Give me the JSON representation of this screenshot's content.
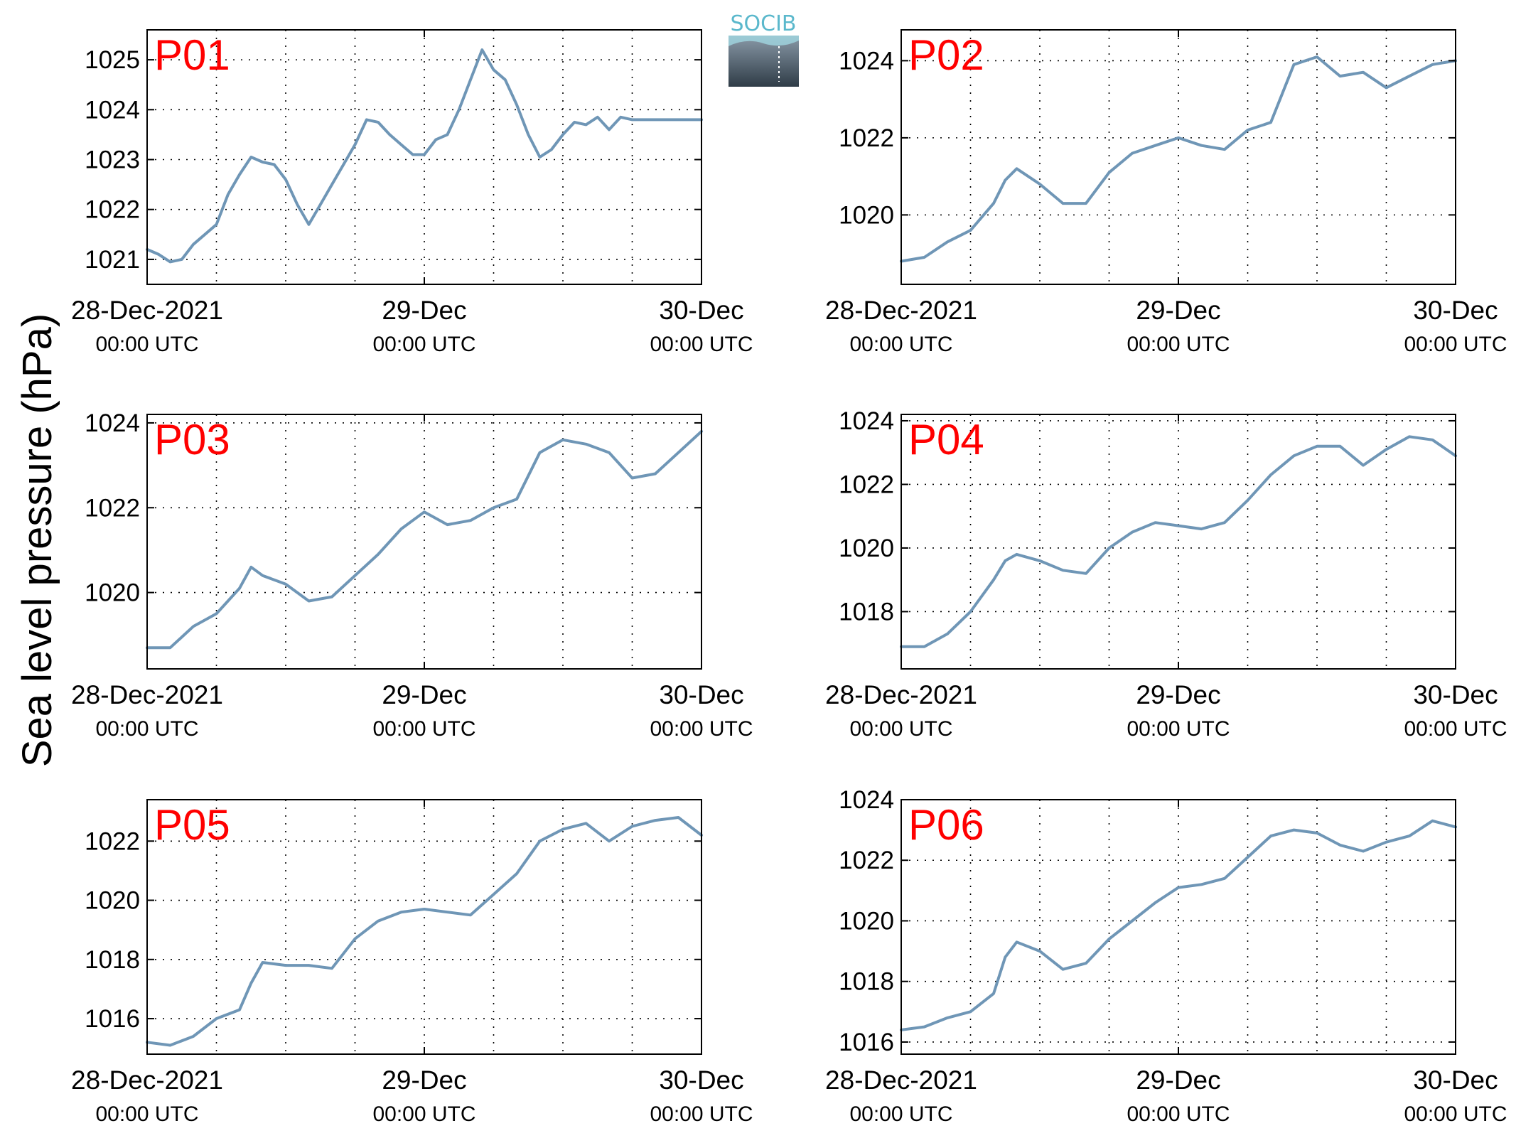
{
  "figure": {
    "ylabel": "Sea level pressure (hPa)",
    "line_color": "#6f96b6",
    "title_color": "#ff0000",
    "logo": {
      "text": "SOCIB",
      "text_color": "#5bb8cc"
    }
  },
  "chart_data": [
    {
      "type": "line",
      "title": "P01",
      "xlabel": "",
      "ylabel": "Sea level pressure (hPa)",
      "xlim": [
        "2021-12-28T00:00",
        "2021-12-30T00:00"
      ],
      "xticks": [
        {
          "line1": "28-Dec-2021",
          "line2": "00:00 UTC"
        },
        {
          "line1": "29-Dec",
          "line2": "00:00 UTC"
        },
        {
          "line1": "30-Dec",
          "line2": "00:00 UTC"
        }
      ],
      "ylim": [
        1020.5,
        1025.6
      ],
      "yticks": [
        1021,
        1022,
        1023,
        1024,
        1025
      ],
      "grid": true,
      "series": [
        {
          "x": [
            "2021-12-28T00:00",
            "2021-12-28T01:00",
            "2021-12-28T02:00",
            "2021-12-28T03:00",
            "2021-12-28T04:00",
            "2021-12-28T05:00",
            "2021-12-28T06:00",
            "2021-12-28T07:00",
            "2021-12-28T08:00",
            "2021-12-28T09:00",
            "2021-12-28T10:00",
            "2021-12-28T11:00",
            "2021-12-28T12:00",
            "2021-12-28T13:00",
            "2021-12-28T14:00",
            "2021-12-28T15:00",
            "2021-12-28T16:00",
            "2021-12-28T17:00",
            "2021-12-28T18:00",
            "2021-12-28T19:00",
            "2021-12-28T20:00",
            "2021-12-28T21:00",
            "2021-12-28T22:00",
            "2021-12-28T23:00",
            "2021-12-29T00:00",
            "2021-12-29T01:00",
            "2021-12-29T02:00",
            "2021-12-29T03:00",
            "2021-12-29T04:00",
            "2021-12-29T05:00",
            "2021-12-29T06:00",
            "2021-12-29T07:00",
            "2021-12-29T08:00",
            "2021-12-29T09:00",
            "2021-12-29T10:00",
            "2021-12-29T11:00",
            "2021-12-29T12:00",
            "2021-12-29T13:00",
            "2021-12-29T14:00",
            "2021-12-29T15:00",
            "2021-12-29T16:00",
            "2021-12-29T17:00",
            "2021-12-29T18:00",
            "2021-12-29T19:00",
            "2021-12-29T20:00",
            "2021-12-29T21:00",
            "2021-12-29T22:00",
            "2021-12-29T23:00",
            "2021-12-30T00:00"
          ],
          "values": [
            1021.2,
            1021.1,
            1020.95,
            1021.0,
            1021.3,
            1021.5,
            1021.7,
            1022.3,
            1022.7,
            1023.05,
            1022.95,
            1022.9,
            1022.6,
            1022.1,
            1021.7,
            1022.1,
            1022.5,
            1022.9,
            1023.3,
            1023.8,
            1023.75,
            1023.5,
            1023.3,
            1023.1,
            1023.1,
            1023.4,
            1023.5,
            1024.0,
            1024.6,
            1025.2,
            1024.8,
            1024.6,
            1024.1,
            1023.5,
            1023.05,
            1023.2,
            1023.5,
            1023.75,
            1023.7,
            1023.85,
            1023.6,
            1023.85,
            1023.8,
            1023.8,
            1023.8,
            1023.8,
            1023.8,
            1023.8,
            1023.8
          ]
        }
      ]
    },
    {
      "type": "line",
      "title": "P02",
      "xlabel": "",
      "ylabel": "Sea level pressure (hPa)",
      "xlim": [
        "2021-12-28T00:00",
        "2021-12-30T00:00"
      ],
      "xticks": [
        {
          "line1": "28-Dec-2021",
          "line2": "00:00 UTC"
        },
        {
          "line1": "29-Dec",
          "line2": "00:00 UTC"
        },
        {
          "line1": "30-Dec",
          "line2": "00:00 UTC"
        }
      ],
      "ylim": [
        1018.2,
        1024.8
      ],
      "yticks": [
        1020,
        1022,
        1024
      ],
      "grid": true,
      "series": [
        {
          "x": [
            "2021-12-28T00:00",
            "2021-12-28T02:00",
            "2021-12-28T04:00",
            "2021-12-28T06:00",
            "2021-12-28T08:00",
            "2021-12-28T09:00",
            "2021-12-28T10:00",
            "2021-12-28T12:00",
            "2021-12-28T14:00",
            "2021-12-28T16:00",
            "2021-12-28T18:00",
            "2021-12-28T20:00",
            "2021-12-28T22:00",
            "2021-12-29T00:00",
            "2021-12-29T02:00",
            "2021-12-29T04:00",
            "2021-12-29T06:00",
            "2021-12-29T08:00",
            "2021-12-29T10:00",
            "2021-12-29T12:00",
            "2021-12-29T14:00",
            "2021-12-29T16:00",
            "2021-12-29T18:00",
            "2021-12-29T20:00",
            "2021-12-29T22:00",
            "2021-12-30T00:00"
          ],
          "values": [
            1018.8,
            1018.9,
            1019.3,
            1019.6,
            1020.3,
            1020.9,
            1021.2,
            1020.8,
            1020.3,
            1020.3,
            1021.1,
            1021.6,
            1021.8,
            1022.0,
            1021.8,
            1021.7,
            1022.2,
            1022.4,
            1023.9,
            1024.1,
            1023.6,
            1023.7,
            1023.3,
            1023.6,
            1023.9,
            1024.0
          ]
        }
      ]
    },
    {
      "type": "line",
      "title": "P03",
      "xlabel": "",
      "ylabel": "Sea level pressure (hPa)",
      "xlim": [
        "2021-12-28T00:00",
        "2021-12-30T00:00"
      ],
      "xticks": [
        {
          "line1": "28-Dec-2021",
          "line2": "00:00 UTC"
        },
        {
          "line1": "29-Dec",
          "line2": "00:00 UTC"
        },
        {
          "line1": "30-Dec",
          "line2": "00:00 UTC"
        }
      ],
      "ylim": [
        1018.2,
        1024.2
      ],
      "yticks": [
        1020,
        1022,
        1024
      ],
      "grid": true,
      "series": [
        {
          "x": [
            "2021-12-28T00:00",
            "2021-12-28T02:00",
            "2021-12-28T04:00",
            "2021-12-28T06:00",
            "2021-12-28T08:00",
            "2021-12-28T09:00",
            "2021-12-28T10:00",
            "2021-12-28T12:00",
            "2021-12-28T14:00",
            "2021-12-28T16:00",
            "2021-12-28T18:00",
            "2021-12-28T20:00",
            "2021-12-28T22:00",
            "2021-12-29T00:00",
            "2021-12-29T02:00",
            "2021-12-29T04:00",
            "2021-12-29T06:00",
            "2021-12-29T08:00",
            "2021-12-29T10:00",
            "2021-12-29T12:00",
            "2021-12-29T14:00",
            "2021-12-29T16:00",
            "2021-12-29T18:00",
            "2021-12-29T20:00",
            "2021-12-29T22:00",
            "2021-12-30T00:00"
          ],
          "values": [
            1018.7,
            1018.7,
            1019.2,
            1019.5,
            1020.1,
            1020.6,
            1020.4,
            1020.2,
            1019.8,
            1019.9,
            1020.4,
            1020.9,
            1021.5,
            1021.9,
            1021.6,
            1021.7,
            1022.0,
            1022.2,
            1023.3,
            1023.6,
            1023.5,
            1023.3,
            1022.7,
            1022.8,
            1023.3,
            1023.8
          ]
        }
      ]
    },
    {
      "type": "line",
      "title": "P04",
      "xlabel": "",
      "ylabel": "Sea level pressure (hPa)",
      "xlim": [
        "2021-12-28T00:00",
        "2021-12-30T00:00"
      ],
      "xticks": [
        {
          "line1": "28-Dec-2021",
          "line2": "00:00 UTC"
        },
        {
          "line1": "29-Dec",
          "line2": "00:00 UTC"
        },
        {
          "line1": "30-Dec",
          "line2": "00:00 UTC"
        }
      ],
      "ylim": [
        1016.2,
        1024.2
      ],
      "yticks": [
        1018,
        1020,
        1022,
        1024
      ],
      "grid": true,
      "series": [
        {
          "x": [
            "2021-12-28T00:00",
            "2021-12-28T02:00",
            "2021-12-28T04:00",
            "2021-12-28T06:00",
            "2021-12-28T08:00",
            "2021-12-28T09:00",
            "2021-12-28T10:00",
            "2021-12-28T12:00",
            "2021-12-28T14:00",
            "2021-12-28T16:00",
            "2021-12-28T18:00",
            "2021-12-28T20:00",
            "2021-12-28T22:00",
            "2021-12-29T00:00",
            "2021-12-29T02:00",
            "2021-12-29T04:00",
            "2021-12-29T06:00",
            "2021-12-29T08:00",
            "2021-12-29T10:00",
            "2021-12-29T12:00",
            "2021-12-29T14:00",
            "2021-12-29T16:00",
            "2021-12-29T18:00",
            "2021-12-29T20:00",
            "2021-12-29T22:00",
            "2021-12-30T00:00"
          ],
          "values": [
            1016.9,
            1016.9,
            1017.3,
            1018.0,
            1019.0,
            1019.6,
            1019.8,
            1019.6,
            1019.3,
            1019.2,
            1020.0,
            1020.5,
            1020.8,
            1020.7,
            1020.6,
            1020.8,
            1021.5,
            1022.3,
            1022.9,
            1023.2,
            1023.2,
            1022.6,
            1023.1,
            1023.5,
            1023.4,
            1022.9
          ]
        }
      ]
    },
    {
      "type": "line",
      "title": "P05",
      "xlabel": "",
      "ylabel": "Sea level pressure (hPa)",
      "xlim": [
        "2021-12-28T00:00",
        "2021-12-30T00:00"
      ],
      "xticks": [
        {
          "line1": "28-Dec-2021",
          "line2": "00:00 UTC"
        },
        {
          "line1": "29-Dec",
          "line2": "00:00 UTC"
        },
        {
          "line1": "30-Dec",
          "line2": "00:00 UTC"
        }
      ],
      "ylim": [
        1014.8,
        1023.4
      ],
      "yticks": [
        1016,
        1018,
        1020,
        1022
      ],
      "grid": true,
      "series": [
        {
          "x": [
            "2021-12-28T00:00",
            "2021-12-28T02:00",
            "2021-12-28T04:00",
            "2021-12-28T06:00",
            "2021-12-28T08:00",
            "2021-12-28T09:00",
            "2021-12-28T10:00",
            "2021-12-28T12:00",
            "2021-12-28T14:00",
            "2021-12-28T16:00",
            "2021-12-28T18:00",
            "2021-12-28T20:00",
            "2021-12-28T22:00",
            "2021-12-29T00:00",
            "2021-12-29T02:00",
            "2021-12-29T04:00",
            "2021-12-29T06:00",
            "2021-12-29T08:00",
            "2021-12-29T10:00",
            "2021-12-29T12:00",
            "2021-12-29T14:00",
            "2021-12-29T16:00",
            "2021-12-29T18:00",
            "2021-12-29T20:00",
            "2021-12-29T22:00",
            "2021-12-30T00:00"
          ],
          "values": [
            1015.2,
            1015.1,
            1015.4,
            1016.0,
            1016.3,
            1017.2,
            1017.9,
            1017.8,
            1017.8,
            1017.7,
            1018.7,
            1019.3,
            1019.6,
            1019.7,
            1019.6,
            1019.5,
            1020.2,
            1020.9,
            1022.0,
            1022.4,
            1022.6,
            1022.0,
            1022.5,
            1022.7,
            1022.8,
            1022.2
          ]
        }
      ]
    },
    {
      "type": "line",
      "title": "P06",
      "xlabel": "",
      "ylabel": "Sea level pressure (hPa)",
      "xlim": [
        "2021-12-28T00:00",
        "2021-12-30T00:00"
      ],
      "xticks": [
        {
          "line1": "28-Dec-2021",
          "line2": "00:00 UTC"
        },
        {
          "line1": "29-Dec",
          "line2": "00:00 UTC"
        },
        {
          "line1": "30-Dec",
          "line2": "00:00 UTC"
        }
      ],
      "ylim": [
        1015.6,
        1024.0
      ],
      "yticks": [
        1016,
        1018,
        1020,
        1022,
        1024
      ],
      "grid": true,
      "series": [
        {
          "x": [
            "2021-12-28T00:00",
            "2021-12-28T02:00",
            "2021-12-28T04:00",
            "2021-12-28T06:00",
            "2021-12-28T08:00",
            "2021-12-28T09:00",
            "2021-12-28T10:00",
            "2021-12-28T12:00",
            "2021-12-28T14:00",
            "2021-12-28T16:00",
            "2021-12-28T18:00",
            "2021-12-28T20:00",
            "2021-12-28T22:00",
            "2021-12-29T00:00",
            "2021-12-29T02:00",
            "2021-12-29T04:00",
            "2021-12-29T06:00",
            "2021-12-29T08:00",
            "2021-12-29T10:00",
            "2021-12-29T12:00",
            "2021-12-29T14:00",
            "2021-12-29T16:00",
            "2021-12-29T18:00",
            "2021-12-29T20:00",
            "2021-12-29T22:00",
            "2021-12-30T00:00"
          ],
          "values": [
            1016.4,
            1016.5,
            1016.8,
            1017.0,
            1017.6,
            1018.8,
            1019.3,
            1019.0,
            1018.4,
            1018.6,
            1019.4,
            1020.0,
            1020.6,
            1021.1,
            1021.2,
            1021.4,
            1022.1,
            1022.8,
            1023.0,
            1022.9,
            1022.5,
            1022.3,
            1022.6,
            1022.8,
            1023.3,
            1023.1
          ]
        }
      ]
    }
  ]
}
